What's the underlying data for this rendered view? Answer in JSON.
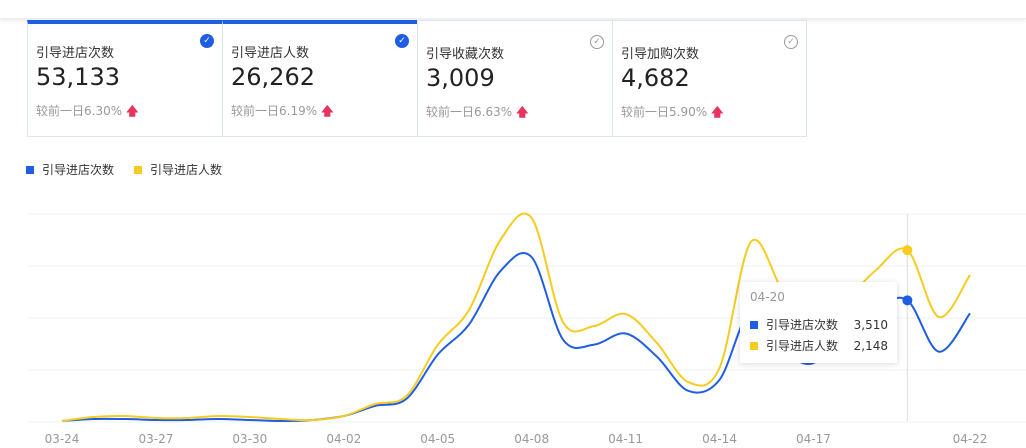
{
  "cards": [
    {
      "title": "引导进店次数",
      "value": "53,133",
      "compare": "较前一日6.30%",
      "selected": true
    },
    {
      "title": "引导进店人数",
      "value": "26,262",
      "compare": "较前一日6.19%",
      "selected": true
    },
    {
      "title": "引导收藏次数",
      "value": "3,009",
      "compare": "较前一日6.63%",
      "selected": false
    },
    {
      "title": "引导加购次数",
      "value": "4,682",
      "compare": "较前一日5.90%",
      "selected": false
    }
  ],
  "icons": {
    "selected": "check-circle-filled-icon",
    "unselected": "check-circle-outline-icon",
    "trend": "arrow-up-icon"
  },
  "tooltip": {
    "date": "04-20",
    "rows": [
      {
        "name": "引导进店次数",
        "value": "3,510"
      },
      {
        "name": "引导进店人数",
        "value": "2,148"
      }
    ]
  },
  "chart_data": {
    "type": "line",
    "x": [
      "03-24",
      "03-25",
      "03-26",
      "03-27",
      "03-28",
      "03-29",
      "03-30",
      "03-31",
      "04-01",
      "04-02",
      "04-03",
      "04-04",
      "04-05",
      "04-06",
      "04-07",
      "04-08",
      "04-09",
      "04-10",
      "04-11",
      "04-12",
      "04-13",
      "04-14",
      "04-15",
      "04-16",
      "04-17",
      "04-18",
      "04-19",
      "04-20",
      "04-21",
      "04-22"
    ],
    "xticks": [
      "03-24",
      "03-27",
      "03-30",
      "04-02",
      "04-05",
      "04-08",
      "04-11",
      "04-14",
      "04-17",
      "04-22"
    ],
    "series": [
      {
        "name": "引导进店次数",
        "color": "#1f5ee3",
        "ylim": [
          0,
          6000
        ],
        "values": [
          29,
          87,
          87,
          58,
          58,
          87,
          58,
          29,
          58,
          174,
          464,
          667,
          1943,
          2813,
          4350,
          4756,
          2378,
          2233,
          2552,
          1885,
          899,
          1218,
          3200,
          2100,
          1700,
          2800,
          3300,
          3510,
          2030,
          3132
        ]
      },
      {
        "name": "引导进店人数",
        "color": "#f5cc1f",
        "ylim": [
          0,
          2600
        ],
        "values": [
          12,
          62,
          75,
          50,
          50,
          75,
          62,
          37,
          25,
          75,
          225,
          325,
          963,
          1400,
          2275,
          2550,
          1250,
          1200,
          1350,
          988,
          500,
          675,
          2250,
          1650,
          1100,
          1500,
          1900,
          2148,
          1313,
          1838
        ]
      }
    ],
    "grid": true,
    "legend": "top-left",
    "highlight": "04-20"
  }
}
